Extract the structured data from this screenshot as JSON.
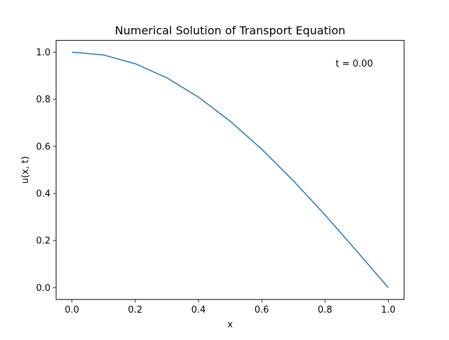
{
  "chart_data": {
    "type": "line",
    "title": "Numerical Solution of Transport Equation",
    "xlabel": "x",
    "ylabel": "u(x, t)",
    "xlim": [
      -0.05,
      1.05
    ],
    "ylim": [
      -0.05,
      1.05
    ],
    "xticks": [
      0.0,
      0.2,
      0.4,
      0.6,
      0.8,
      1.0
    ],
    "xtick_labels": [
      "0.0",
      "0.2",
      "0.4",
      "0.6",
      "0.8",
      "1.0"
    ],
    "yticks": [
      0.0,
      0.2,
      0.4,
      0.6,
      0.8,
      1.0
    ],
    "ytick_labels": [
      "0.0",
      "0.2",
      "0.4",
      "0.6",
      "0.8",
      "1.0"
    ],
    "grid": false,
    "annotation": "t = 0.00",
    "series": [
      {
        "color": "#1f77b4",
        "x": [
          0.0,
          0.1,
          0.2,
          0.3,
          0.4,
          0.5,
          0.6,
          0.7,
          0.8,
          0.9,
          1.0
        ],
        "y": [
          1.0,
          0.988,
          0.951,
          0.891,
          0.809,
          0.707,
          0.588,
          0.454,
          0.309,
          0.156,
          0.0
        ]
      }
    ]
  }
}
